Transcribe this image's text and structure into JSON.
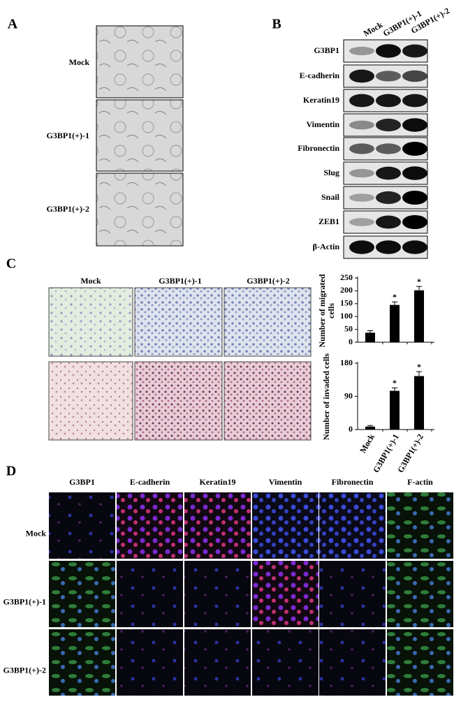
{
  "panel_a": {
    "label": "A",
    "rows": [
      "Mock",
      "G3BP1(+)-1",
      "G3BP1(+)-2"
    ]
  },
  "panel_b": {
    "label": "B",
    "columns": [
      "Mock",
      "G3BP1(+)-1",
      "G3BP1(+)-2"
    ],
    "proteins": [
      "G3BP1",
      "E-cadherin",
      "Keratin19",
      "Vimentin",
      "Fibronectin",
      "Slug",
      "Snail",
      "ZEB1",
      "β-Actin"
    ]
  },
  "panel_c": {
    "label": "C",
    "columns": [
      "Mock",
      "G3BP1(+)-1",
      "G3BP1(+)-2"
    ]
  },
  "panel_d": {
    "label": "D",
    "columns": [
      "G3BP1",
      "E-cadherin",
      "Keratin19",
      "Vimentin",
      "Fibronectin",
      "F-actin"
    ],
    "rows": [
      "Mock",
      "G3BP1(+)-1",
      "G3BP1(+)-2"
    ]
  },
  "chart_data": [
    {
      "type": "bar",
      "y_label": "Number of migrated cells",
      "values": [
        37,
        145,
        202
      ],
      "errors": [
        8,
        12,
        15
      ],
      "annotations": [
        null,
        "*",
        "*"
      ],
      "color": "#000000",
      "ylim": [
        0,
        250
      ],
      "yticks": [
        0,
        50,
        100,
        150,
        200,
        250
      ]
    },
    {
      "type": "bar",
      "y_label": "Number of invaded cells",
      "categories": [
        "Mock",
        "G3BP1(+)-1",
        "G3BP1(+)-2"
      ],
      "values": [
        8,
        105,
        145
      ],
      "errors": [
        3,
        8,
        12
      ],
      "annotations": [
        null,
        "*",
        "*"
      ],
      "color": "#000000",
      "ylim": [
        0,
        180
      ],
      "yticks": [
        0,
        90,
        180
      ]
    }
  ]
}
